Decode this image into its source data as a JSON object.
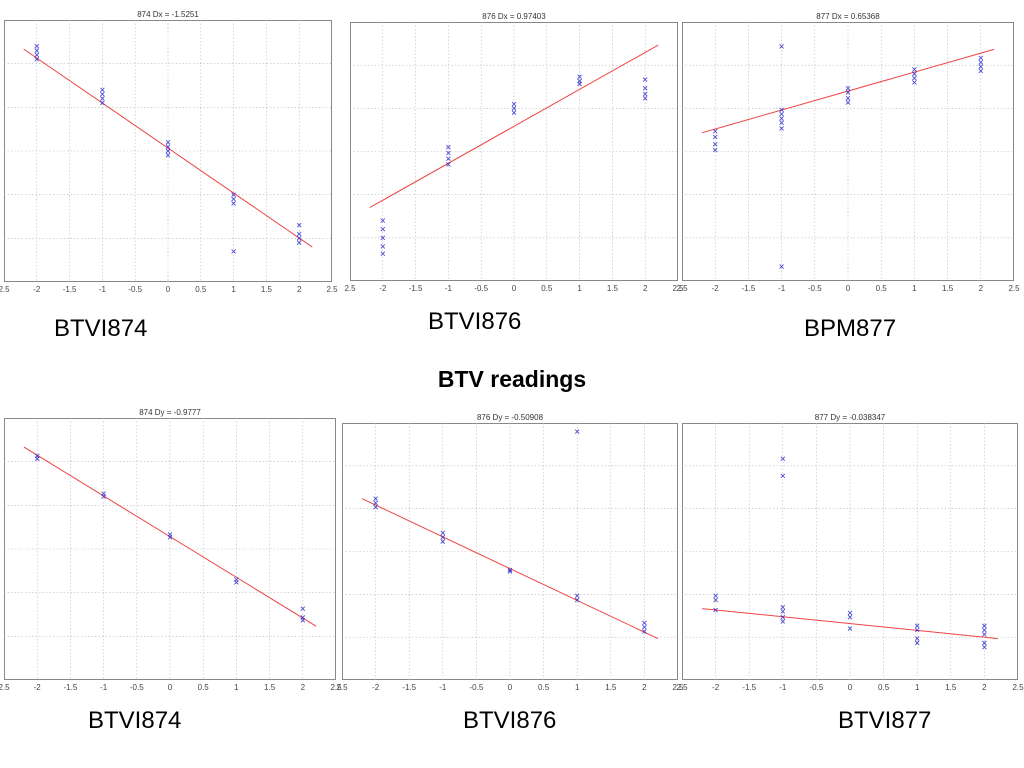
{
  "heading": "BTV readings",
  "chart_data": [
    {
      "type": "scatter",
      "title": "874 Dx = -1.5251",
      "caption": "BTVI874",
      "xlim": [
        -2.5,
        2.5
      ],
      "xticks": [
        "2.5",
        "-2",
        "-1.5",
        "-1",
        "-0.5",
        "0",
        "0.5",
        "1",
        "1.5",
        "2",
        "2.5"
      ],
      "ylim": [
        -9,
        9
      ],
      "grid": true,
      "point_color": "#2222cc",
      "fit_color": "#ee4444",
      "points": [
        [
          -2,
          7.2
        ],
        [
          -2,
          6.9
        ],
        [
          -2,
          6.6
        ],
        [
          -2,
          6.3
        ],
        [
          -1,
          4.2
        ],
        [
          -1,
          3.9
        ],
        [
          -1,
          3.6
        ],
        [
          -1,
          3.3
        ],
        [
          0,
          0.6
        ],
        [
          0,
          0.3
        ],
        [
          0,
          0.0
        ],
        [
          0,
          -0.3
        ],
        [
          1,
          -3.0
        ],
        [
          1,
          -3.3
        ],
        [
          1,
          -3.6
        ],
        [
          1,
          -6.9
        ],
        [
          2,
          -5.1
        ],
        [
          2,
          -5.7
        ],
        [
          2,
          -6.0
        ],
        [
          2,
          -6.3
        ]
      ],
      "fit": [
        [
          -2.2,
          7.0
        ],
        [
          2.2,
          -6.6
        ]
      ]
    },
    {
      "type": "scatter",
      "title": "876 Dx = 0.97403",
      "caption": "BTVI876",
      "xlim": [
        -2.5,
        2.5
      ],
      "xticks": [
        "2.5",
        "-2",
        "-1.5",
        "-1",
        "-0.5",
        "0",
        "0.5",
        "1",
        "1.5",
        "2",
        "2.5"
      ],
      "ylim": [
        -9,
        9
      ],
      "grid": true,
      "point_color": "#2222cc",
      "fit_color": "#ee4444",
      "points": [
        [
          -2,
          -4.8
        ],
        [
          -2,
          -5.4
        ],
        [
          -2,
          -6.0
        ],
        [
          -2,
          -6.6
        ],
        [
          -2,
          -7.1
        ],
        [
          -1,
          0.3
        ],
        [
          -1,
          -0.1
        ],
        [
          -1,
          -0.5
        ],
        [
          -1,
          -0.9
        ],
        [
          0,
          3.3
        ],
        [
          0,
          3.0
        ],
        [
          0,
          2.7
        ],
        [
          1,
          5.2
        ],
        [
          1,
          4.9
        ],
        [
          1,
          4.7
        ],
        [
          2,
          5.0
        ],
        [
          2,
          4.4
        ],
        [
          2,
          4.0
        ],
        [
          2,
          3.7
        ]
      ],
      "fit": [
        [
          -2.2,
          -3.9
        ],
        [
          2.2,
          7.4
        ]
      ]
    },
    {
      "type": "scatter",
      "title": "877 Dx = 0.65368",
      "caption": "BPM877",
      "xlim": [
        -2.5,
        2.5
      ],
      "xticks": [
        "2.5",
        "-2",
        "-1.5",
        "-1",
        "-0.5",
        "0",
        "0.5",
        "1",
        "1.5",
        "2",
        "2.5"
      ],
      "ylim": [
        -9,
        9
      ],
      "grid": true,
      "point_color": "#2222cc",
      "fit_color": "#ee4444",
      "points": [
        [
          -2,
          1.4
        ],
        [
          -2,
          1.0
        ],
        [
          -2,
          0.5
        ],
        [
          -2,
          0.1
        ],
        [
          -1,
          7.3
        ],
        [
          -1,
          2.9
        ],
        [
          -1,
          2.6
        ],
        [
          -1,
          2.3
        ],
        [
          -1,
          2.0
        ],
        [
          -1,
          1.6
        ],
        [
          -1,
          -8.0
        ],
        [
          0,
          4.4
        ],
        [
          0,
          4.1
        ],
        [
          0,
          3.7
        ],
        [
          0,
          3.4
        ],
        [
          1,
          5.7
        ],
        [
          1,
          5.4
        ],
        [
          1,
          5.1
        ],
        [
          1,
          4.8
        ],
        [
          2,
          6.5
        ],
        [
          2,
          6.2
        ],
        [
          2,
          5.9
        ],
        [
          2,
          5.6
        ]
      ],
      "fit": [
        [
          -2.2,
          1.3
        ],
        [
          2.2,
          7.1
        ]
      ]
    },
    {
      "type": "scatter",
      "title": "874 Dy = -0.9777",
      "caption": "BTVI874",
      "xlim": [
        -2.5,
        2.5
      ],
      "xticks": [
        "2.5",
        "-2",
        "-1.5",
        "-1",
        "-0.5",
        "0",
        "0.5",
        "1",
        "1.5",
        "2",
        "2.5"
      ],
      "ylim": [
        -9,
        9
      ],
      "grid": true,
      "point_color": "#2222cc",
      "fit_color": "#ee4444",
      "points": [
        [
          -2,
          6.4
        ],
        [
          -2,
          6.2
        ],
        [
          -1,
          3.8
        ],
        [
          -1,
          3.6
        ],
        [
          0,
          1.0
        ],
        [
          0,
          0.8
        ],
        [
          1,
          -2.1
        ],
        [
          1,
          -2.3
        ],
        [
          2,
          -4.1
        ],
        [
          2,
          -4.7
        ],
        [
          2,
          -4.9
        ]
      ],
      "fit": [
        [
          -2.2,
          7.0
        ],
        [
          2.2,
          -5.3
        ]
      ]
    },
    {
      "type": "scatter",
      "title": "876 Dy = -0.50908",
      "caption": "BTVI876",
      "xlim": [
        -2.5,
        2.5
      ],
      "xticks": [
        "2.5",
        "-2",
        "-1.5",
        "-1",
        "-0.5",
        "0",
        "0.5",
        "1",
        "1.5",
        "2",
        "2.5"
      ],
      "ylim": [
        -9,
        9
      ],
      "grid": true,
      "point_color": "#2222cc",
      "fit_color": "#ee4444",
      "points": [
        [
          -2,
          3.7
        ],
        [
          -2,
          3.4
        ],
        [
          -2,
          3.1
        ],
        [
          -1,
          1.3
        ],
        [
          -1,
          1.0
        ],
        [
          -1,
          0.7
        ],
        [
          0,
          -1.3
        ],
        [
          0,
          -1.4
        ],
        [
          1,
          8.4
        ],
        [
          1,
          -3.1
        ],
        [
          1,
          -3.4
        ],
        [
          2,
          -5.0
        ],
        [
          2,
          -5.3
        ],
        [
          2,
          -5.6
        ]
      ],
      "fit": [
        [
          -2.2,
          3.7
        ],
        [
          2.2,
          -6.1
        ]
      ]
    },
    {
      "type": "scatter",
      "title": "877 Dy = -0.038347",
      "caption": "BTVI877",
      "xlim": [
        -2.5,
        2.5
      ],
      "xticks": [
        "2.5",
        "-2",
        "-1.5",
        "-1",
        "-0.5",
        "0",
        "0.5",
        "1",
        "1.5",
        "2",
        "2.5"
      ],
      "ylim": [
        -9,
        9
      ],
      "grid": true,
      "point_color": "#2222cc",
      "fit_color": "#ee4444",
      "points": [
        [
          -2,
          -3.1
        ],
        [
          -2,
          -3.4
        ],
        [
          -2,
          -4.1
        ],
        [
          -1,
          6.5
        ],
        [
          -1,
          5.3
        ],
        [
          -1,
          -3.9
        ],
        [
          -1,
          -4.2
        ],
        [
          -1,
          -4.6
        ],
        [
          -1,
          -4.9
        ],
        [
          0,
          -4.3
        ],
        [
          0,
          -4.6
        ],
        [
          0,
          -5.4
        ],
        [
          1,
          -5.2
        ],
        [
          1,
          -5.5
        ],
        [
          1,
          -6.1
        ],
        [
          1,
          -6.4
        ],
        [
          2,
          -5.2
        ],
        [
          2,
          -5.5
        ],
        [
          2,
          -5.8
        ],
        [
          2,
          -6.4
        ],
        [
          2,
          -6.7
        ]
      ],
      "fit": [
        [
          -2.2,
          -4.0
        ],
        [
          2.2,
          -6.1
        ]
      ]
    }
  ]
}
